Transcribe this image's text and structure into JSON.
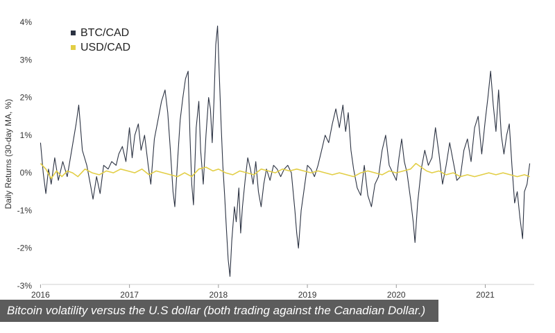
{
  "chart_data": {
    "type": "line",
    "title": "",
    "xlabel": "",
    "ylabel": "Daily Returns (30-day MA, %)",
    "ylim": [
      -3,
      4
    ],
    "xlim": [
      2015.95,
      2021.55
    ],
    "x_ticks": [
      2016,
      2017,
      2018,
      2019,
      2020,
      2021
    ],
    "x_tick_labels": [
      "2016",
      "2017",
      "2018",
      "2019",
      "2020",
      "2021"
    ],
    "y_ticks": [
      -3,
      -2,
      -1,
      0,
      1,
      2,
      3,
      4
    ],
    "y_tick_labels": [
      "-3%",
      "-2%",
      "-1%",
      "0%",
      "1%",
      "2%",
      "3%",
      "4%"
    ],
    "legend_position": "top-left",
    "series": [
      {
        "name": "BTC/CAD",
        "color": "#2b3242",
        "points": [
          [
            2016.0,
            0.8
          ],
          [
            2016.03,
            0.0
          ],
          [
            2016.06,
            -0.55
          ],
          [
            2016.09,
            0.1
          ],
          [
            2016.12,
            -0.3
          ],
          [
            2016.16,
            0.4
          ],
          [
            2016.2,
            -0.2
          ],
          [
            2016.25,
            0.3
          ],
          [
            2016.3,
            -0.1
          ],
          [
            2016.35,
            0.6
          ],
          [
            2016.4,
            1.3
          ],
          [
            2016.43,
            1.8
          ],
          [
            2016.47,
            0.6
          ],
          [
            2016.52,
            0.2
          ],
          [
            2016.56,
            -0.3
          ],
          [
            2016.59,
            -0.7
          ],
          [
            2016.63,
            -0.1
          ],
          [
            2016.67,
            -0.55
          ],
          [
            2016.71,
            0.2
          ],
          [
            2016.76,
            0.1
          ],
          [
            2016.8,
            0.3
          ],
          [
            2016.85,
            0.2
          ],
          [
            2016.88,
            0.5
          ],
          [
            2016.92,
            0.7
          ],
          [
            2016.96,
            0.3
          ],
          [
            2017.0,
            1.2
          ],
          [
            2017.03,
            0.4
          ],
          [
            2017.06,
            1.0
          ],
          [
            2017.1,
            1.3
          ],
          [
            2017.13,
            0.6
          ],
          [
            2017.17,
            1.0
          ],
          [
            2017.21,
            0.2
          ],
          [
            2017.24,
            -0.3
          ],
          [
            2017.28,
            0.9
          ],
          [
            2017.32,
            1.4
          ],
          [
            2017.36,
            1.9
          ],
          [
            2017.4,
            2.2
          ],
          [
            2017.43,
            1.6
          ],
          [
            2017.46,
            0.6
          ],
          [
            2017.49,
            -0.5
          ],
          [
            2017.51,
            -0.9
          ],
          [
            2017.54,
            0.3
          ],
          [
            2017.57,
            1.4
          ],
          [
            2017.6,
            2.0
          ],
          [
            2017.63,
            2.5
          ],
          [
            2017.66,
            2.7
          ],
          [
            2017.68,
            1.0
          ],
          [
            2017.7,
            -0.3
          ],
          [
            2017.72,
            -0.85
          ],
          [
            2017.75,
            1.2
          ],
          [
            2017.78,
            1.9
          ],
          [
            2017.8,
            0.6
          ],
          [
            2017.83,
            -0.3
          ],
          [
            2017.86,
            1.0
          ],
          [
            2017.89,
            2.0
          ],
          [
            2017.91,
            1.7
          ],
          [
            2017.93,
            0.8
          ],
          [
            2017.95,
            1.9
          ],
          [
            2017.97,
            3.4
          ],
          [
            2017.99,
            3.9
          ],
          [
            2018.01,
            2.6
          ],
          [
            2018.03,
            1.3
          ],
          [
            2018.05,
            0.2
          ],
          [
            2018.07,
            -0.6
          ],
          [
            2018.09,
            -1.5
          ],
          [
            2018.11,
            -2.3
          ],
          [
            2018.13,
            -2.75
          ],
          [
            2018.15,
            -1.8
          ],
          [
            2018.18,
            -0.9
          ],
          [
            2018.2,
            -1.3
          ],
          [
            2018.23,
            -0.4
          ],
          [
            2018.25,
            -1.6
          ],
          [
            2018.27,
            -0.9
          ],
          [
            2018.3,
            -0.2
          ],
          [
            2018.33,
            0.4
          ],
          [
            2018.36,
            0.1
          ],
          [
            2018.39,
            -0.3
          ],
          [
            2018.42,
            0.3
          ],
          [
            2018.45,
            -0.5
          ],
          [
            2018.48,
            -0.9
          ],
          [
            2018.51,
            -0.3
          ],
          [
            2018.54,
            0.1
          ],
          [
            2018.58,
            -0.2
          ],
          [
            2018.62,
            0.2
          ],
          [
            2018.66,
            0.1
          ],
          [
            2018.7,
            -0.1
          ],
          [
            2018.74,
            0.1
          ],
          [
            2018.78,
            0.2
          ],
          [
            2018.82,
            0.0
          ],
          [
            2018.86,
            -1.0
          ],
          [
            2018.88,
            -1.6
          ],
          [
            2018.9,
            -2.0
          ],
          [
            2018.93,
            -1.0
          ],
          [
            2018.96,
            -0.5
          ],
          [
            2019.0,
            0.2
          ],
          [
            2019.04,
            0.1
          ],
          [
            2019.08,
            -0.1
          ],
          [
            2019.12,
            0.2
          ],
          [
            2019.16,
            0.6
          ],
          [
            2019.2,
            1.0
          ],
          [
            2019.24,
            0.8
          ],
          [
            2019.28,
            1.3
          ],
          [
            2019.32,
            1.7
          ],
          [
            2019.36,
            1.2
          ],
          [
            2019.4,
            1.8
          ],
          [
            2019.43,
            1.1
          ],
          [
            2019.46,
            1.6
          ],
          [
            2019.49,
            0.6
          ],
          [
            2019.52,
            0.1
          ],
          [
            2019.56,
            -0.4
          ],
          [
            2019.6,
            -0.6
          ],
          [
            2019.64,
            0.2
          ],
          [
            2019.68,
            -0.6
          ],
          [
            2019.72,
            -0.9
          ],
          [
            2019.76,
            -0.3
          ],
          [
            2019.8,
            -0.1
          ],
          [
            2019.84,
            0.6
          ],
          [
            2019.88,
            1.0
          ],
          [
            2019.92,
            0.2
          ],
          [
            2019.96,
            0.0
          ],
          [
            2020.0,
            -0.2
          ],
          [
            2020.03,
            0.4
          ],
          [
            2020.06,
            0.9
          ],
          [
            2020.09,
            0.3
          ],
          [
            2020.12,
            0.0
          ],
          [
            2020.16,
            -0.7
          ],
          [
            2020.19,
            -1.3
          ],
          [
            2020.21,
            -1.85
          ],
          [
            2020.24,
            -0.8
          ],
          [
            2020.28,
            0.1
          ],
          [
            2020.32,
            0.6
          ],
          [
            2020.36,
            0.2
          ],
          [
            2020.4,
            0.4
          ],
          [
            2020.44,
            1.2
          ],
          [
            2020.48,
            0.5
          ],
          [
            2020.52,
            -0.3
          ],
          [
            2020.56,
            0.2
          ],
          [
            2020.6,
            0.8
          ],
          [
            2020.64,
            0.3
          ],
          [
            2020.68,
            -0.2
          ],
          [
            2020.72,
            -0.1
          ],
          [
            2020.76,
            0.6
          ],
          [
            2020.8,
            0.9
          ],
          [
            2020.84,
            0.3
          ],
          [
            2020.88,
            1.2
          ],
          [
            2020.92,
            1.5
          ],
          [
            2020.96,
            0.5
          ],
          [
            2021.0,
            1.4
          ],
          [
            2021.03,
            2.0
          ],
          [
            2021.06,
            2.7
          ],
          [
            2021.09,
            1.8
          ],
          [
            2021.12,
            1.1
          ],
          [
            2021.15,
            2.2
          ],
          [
            2021.18,
            1.0
          ],
          [
            2021.21,
            0.5
          ],
          [
            2021.24,
            1.0
          ],
          [
            2021.27,
            1.3
          ],
          [
            2021.3,
            0.2
          ],
          [
            2021.33,
            -0.8
          ],
          [
            2021.36,
            -0.5
          ],
          [
            2021.39,
            -1.2
          ],
          [
            2021.42,
            -1.75
          ],
          [
            2021.44,
            -0.5
          ],
          [
            2021.47,
            -0.3
          ],
          [
            2021.5,
            0.25
          ]
        ]
      },
      {
        "name": "USD/CAD",
        "color": "#e2ce45",
        "points": [
          [
            2016.0,
            0.25
          ],
          [
            2016.06,
            0.1
          ],
          [
            2016.12,
            -0.15
          ],
          [
            2016.18,
            0.05
          ],
          [
            2016.24,
            -0.1
          ],
          [
            2016.3,
            0.05
          ],
          [
            2016.36,
            0.0
          ],
          [
            2016.42,
            -0.1
          ],
          [
            2016.5,
            0.1
          ],
          [
            2016.58,
            0.0
          ],
          [
            2016.66,
            -0.05
          ],
          [
            2016.74,
            0.05
          ],
          [
            2016.82,
            0.0
          ],
          [
            2016.9,
            0.1
          ],
          [
            2016.98,
            0.05
          ],
          [
            2017.06,
            0.0
          ],
          [
            2017.14,
            0.1
          ],
          [
            2017.22,
            -0.05
          ],
          [
            2017.3,
            0.05
          ],
          [
            2017.38,
            0.0
          ],
          [
            2017.46,
            -0.05
          ],
          [
            2017.54,
            -0.1
          ],
          [
            2017.62,
            0.0
          ],
          [
            2017.7,
            -0.1
          ],
          [
            2017.78,
            0.1
          ],
          [
            2017.86,
            0.15
          ],
          [
            2017.94,
            0.05
          ],
          [
            2018.0,
            0.1
          ],
          [
            2018.08,
            0.0
          ],
          [
            2018.16,
            -0.05
          ],
          [
            2018.24,
            0.05
          ],
          [
            2018.32,
            0.0
          ],
          [
            2018.4,
            -0.05
          ],
          [
            2018.48,
            0.1
          ],
          [
            2018.56,
            0.05
          ],
          [
            2018.64,
            0.0
          ],
          [
            2018.72,
            0.1
          ],
          [
            2018.8,
            0.05
          ],
          [
            2018.88,
            0.1
          ],
          [
            2018.96,
            0.05
          ],
          [
            2019.04,
            0.0
          ],
          [
            2019.12,
            0.05
          ],
          [
            2019.2,
            0.0
          ],
          [
            2019.28,
            -0.05
          ],
          [
            2019.36,
            0.0
          ],
          [
            2019.44,
            -0.05
          ],
          [
            2019.52,
            -0.1
          ],
          [
            2019.6,
            0.0
          ],
          [
            2019.68,
            0.05
          ],
          [
            2019.76,
            0.0
          ],
          [
            2019.84,
            -0.05
          ],
          [
            2019.92,
            0.05
          ],
          [
            2020.0,
            0.0
          ],
          [
            2020.08,
            0.05
          ],
          [
            2020.16,
            0.1
          ],
          [
            2020.22,
            0.25
          ],
          [
            2020.28,
            0.15
          ],
          [
            2020.34,
            0.05
          ],
          [
            2020.4,
            0.0
          ],
          [
            2020.48,
            0.05
          ],
          [
            2020.56,
            -0.05
          ],
          [
            2020.64,
            0.0
          ],
          [
            2020.72,
            -0.1
          ],
          [
            2020.8,
            -0.05
          ],
          [
            2020.88,
            -0.1
          ],
          [
            2020.96,
            -0.05
          ],
          [
            2021.04,
            0.0
          ],
          [
            2021.12,
            -0.05
          ],
          [
            2021.2,
            0.0
          ],
          [
            2021.28,
            -0.05
          ],
          [
            2021.36,
            -0.1
          ],
          [
            2021.44,
            -0.05
          ],
          [
            2021.5,
            -0.1
          ]
        ]
      }
    ]
  },
  "caption": {
    "text": "Bitcoin volatility versus the U.S dollar (both trading against the Canadian Dollar.)"
  }
}
